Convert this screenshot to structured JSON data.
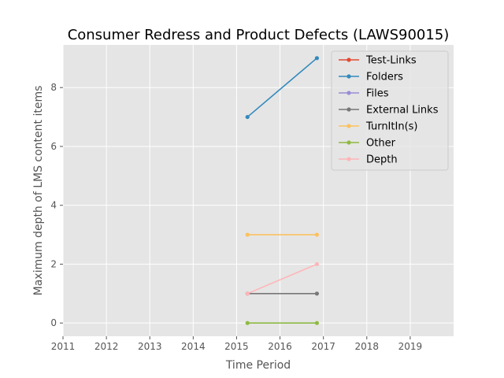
{
  "chart_data": {
    "type": "line",
    "title": "Consumer Redress and Product Defects (LAWS90015)",
    "xlabel": "Time Period",
    "ylabel": "Maximum depth of LMS content items",
    "xlim": [
      2011,
      2020
    ],
    "ylim": [
      -0.45,
      9.45
    ],
    "x_ticks": [
      "2011",
      "2012",
      "2013",
      "2014",
      "2015",
      "2016",
      "2017",
      "2018",
      "2019"
    ],
    "y_ticks": [
      "0",
      "2",
      "4",
      "6",
      "8"
    ],
    "grid": true,
    "legend_position": "top-right",
    "x": [
      2015.25,
      2016.85
    ],
    "series": [
      {
        "name": "Test-Links",
        "color": "#E24A33",
        "values": [
          null,
          null
        ]
      },
      {
        "name": "Folders",
        "color": "#348ABD",
        "values": [
          7,
          9
        ]
      },
      {
        "name": "Files",
        "color": "#988ED5",
        "values": [
          null,
          null
        ]
      },
      {
        "name": "External Links",
        "color": "#777777",
        "values": [
          1,
          1
        ]
      },
      {
        "name": "TurnItIn(s)",
        "color": "#FBC15E",
        "values": [
          3,
          3
        ]
      },
      {
        "name": "Other",
        "color": "#8EBA42",
        "values": [
          0,
          0
        ]
      },
      {
        "name": "Depth",
        "color": "#FFB5B8",
        "values": [
          1,
          2
        ]
      }
    ]
  }
}
